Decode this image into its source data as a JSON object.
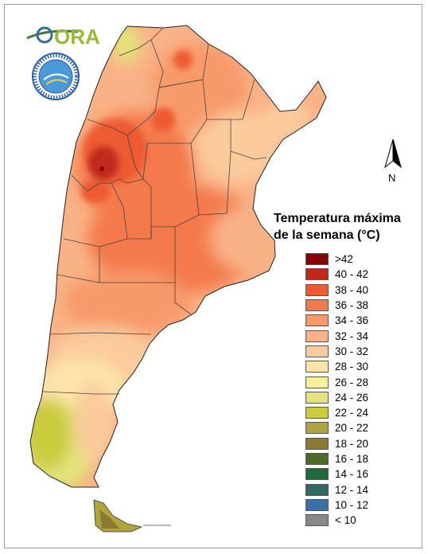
{
  "logo": {
    "text": "ORA"
  },
  "seal": {
    "label": "SERVICIO METEOROLÓGICO NACIONAL · ARGENTINA"
  },
  "north_arrow": {
    "label": "N"
  },
  "legend": {
    "title_line1": "Temperatura máxima",
    "title_line2": "de la semana (°C)",
    "items": [
      {
        "label": ">42",
        "color": "#8b0000"
      },
      {
        "label": "40 - 42",
        "color": "#c0291a"
      },
      {
        "label": "38 - 40",
        "color": "#ee5a32"
      },
      {
        "label": "36 - 38",
        "color": "#f47a4d"
      },
      {
        "label": "34 - 36",
        "color": "#f79a6b"
      },
      {
        "label": "32 - 34",
        "color": "#f9b286"
      },
      {
        "label": "30 - 32",
        "color": "#fbcb9c"
      },
      {
        "label": "28 - 30",
        "color": "#fde4a8"
      },
      {
        "label": "26 - 28",
        "color": "#f6f09a"
      },
      {
        "label": "24 - 26",
        "color": "#e3e37a"
      },
      {
        "label": "22 - 24",
        "color": "#c9cc3c"
      },
      {
        "label": "20 - 22",
        "color": "#b1a440"
      },
      {
        "label": "18 - 20",
        "color": "#8c7a30"
      },
      {
        "label": "16 - 18",
        "color": "#4e6b2a"
      },
      {
        "label": "14 - 16",
        "color": "#1e6a3a"
      },
      {
        "label": "12 - 14",
        "color": "#2f6a66"
      },
      {
        "label": "10 - 12",
        "color": "#3a6fa8"
      },
      {
        "label": "< 10",
        "color": "#888888"
      }
    ]
  }
}
